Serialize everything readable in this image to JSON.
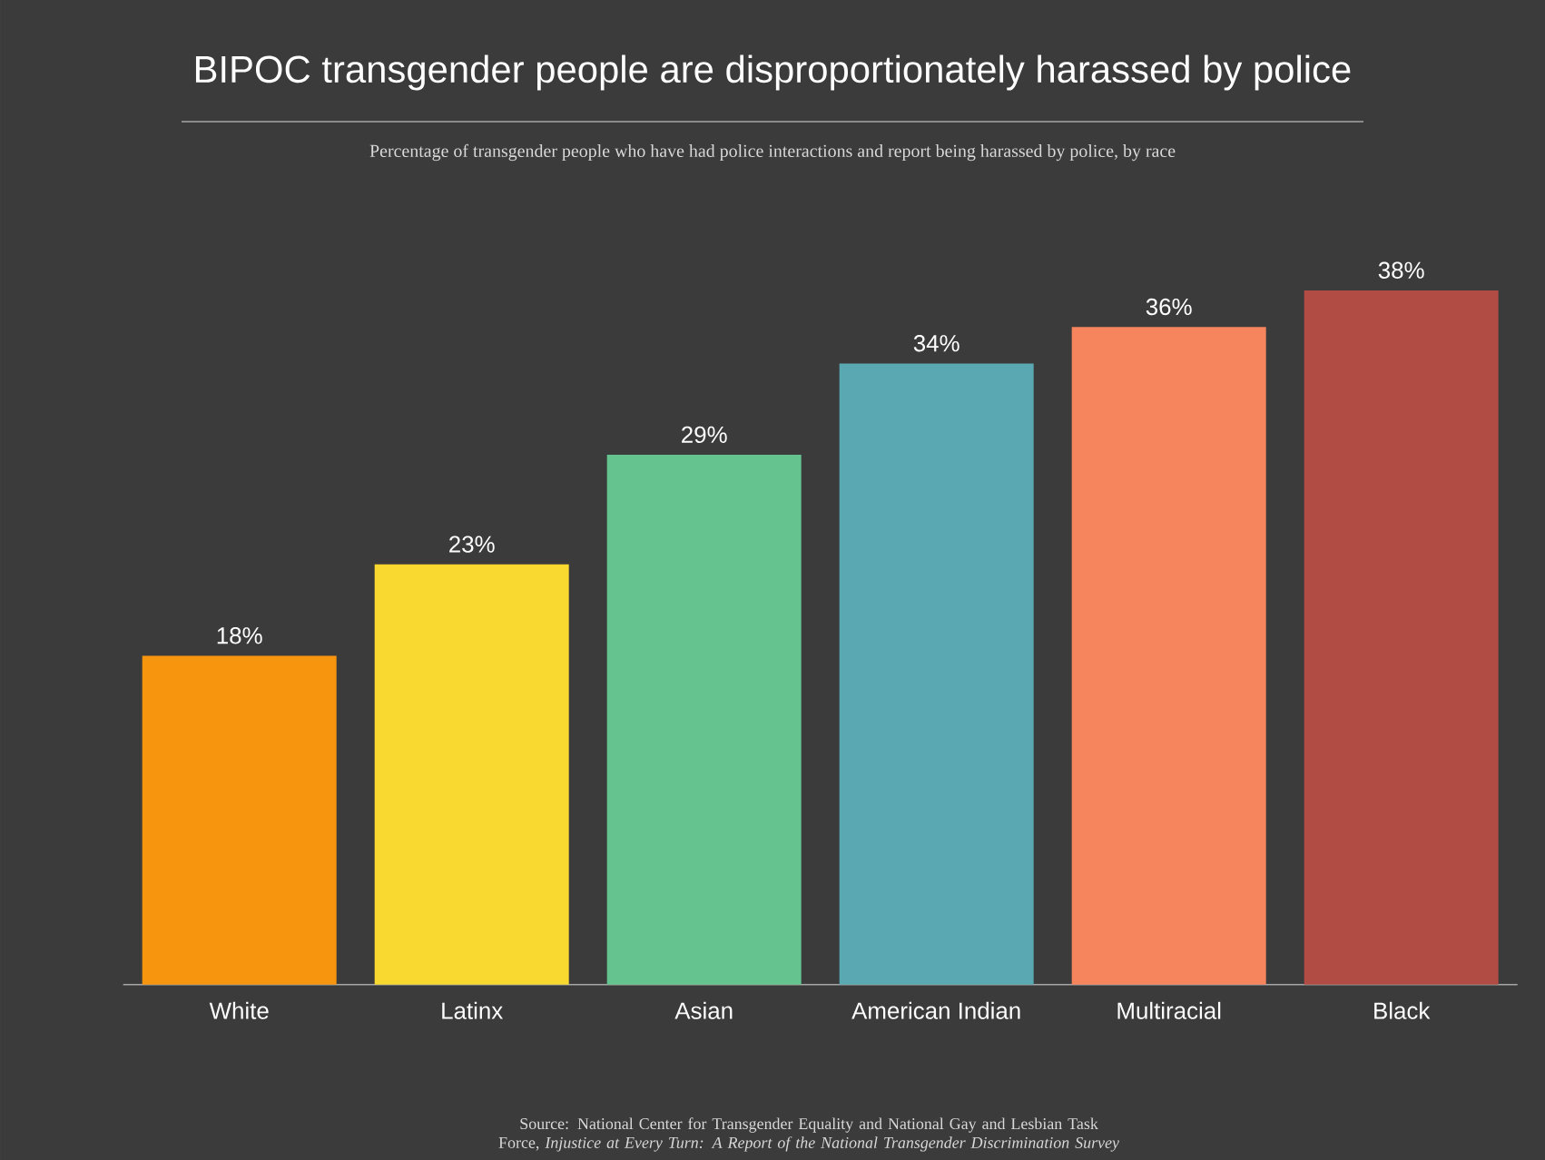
{
  "chart_data": {
    "type": "bar",
    "title": "BIPOC transgender people are disproportionately harassed by police",
    "subtitle": "Percentage of transgender people who have had police interactions and report being harassed by police, by race",
    "categories": [
      "White",
      "Latinx",
      "Asian",
      "American Indian",
      "Multiracial",
      "Black"
    ],
    "values": [
      18,
      23,
      29,
      34,
      36,
      38
    ],
    "value_labels": [
      "18%",
      "23%",
      "29%",
      "34%",
      "36%",
      "38%"
    ],
    "colors": [
      "#f7950f",
      "#f9d92f",
      "#64c38f",
      "#5aa8b2",
      "#f6845d",
      "#b14c45"
    ],
    "annotations": [
      "Source: National Center for Transgender Equality and National Gay and Lesbian Task Force, *Injustice at Every Turn: A Report of the National Transgender Discrimination Survey*"
    ]
  }
}
